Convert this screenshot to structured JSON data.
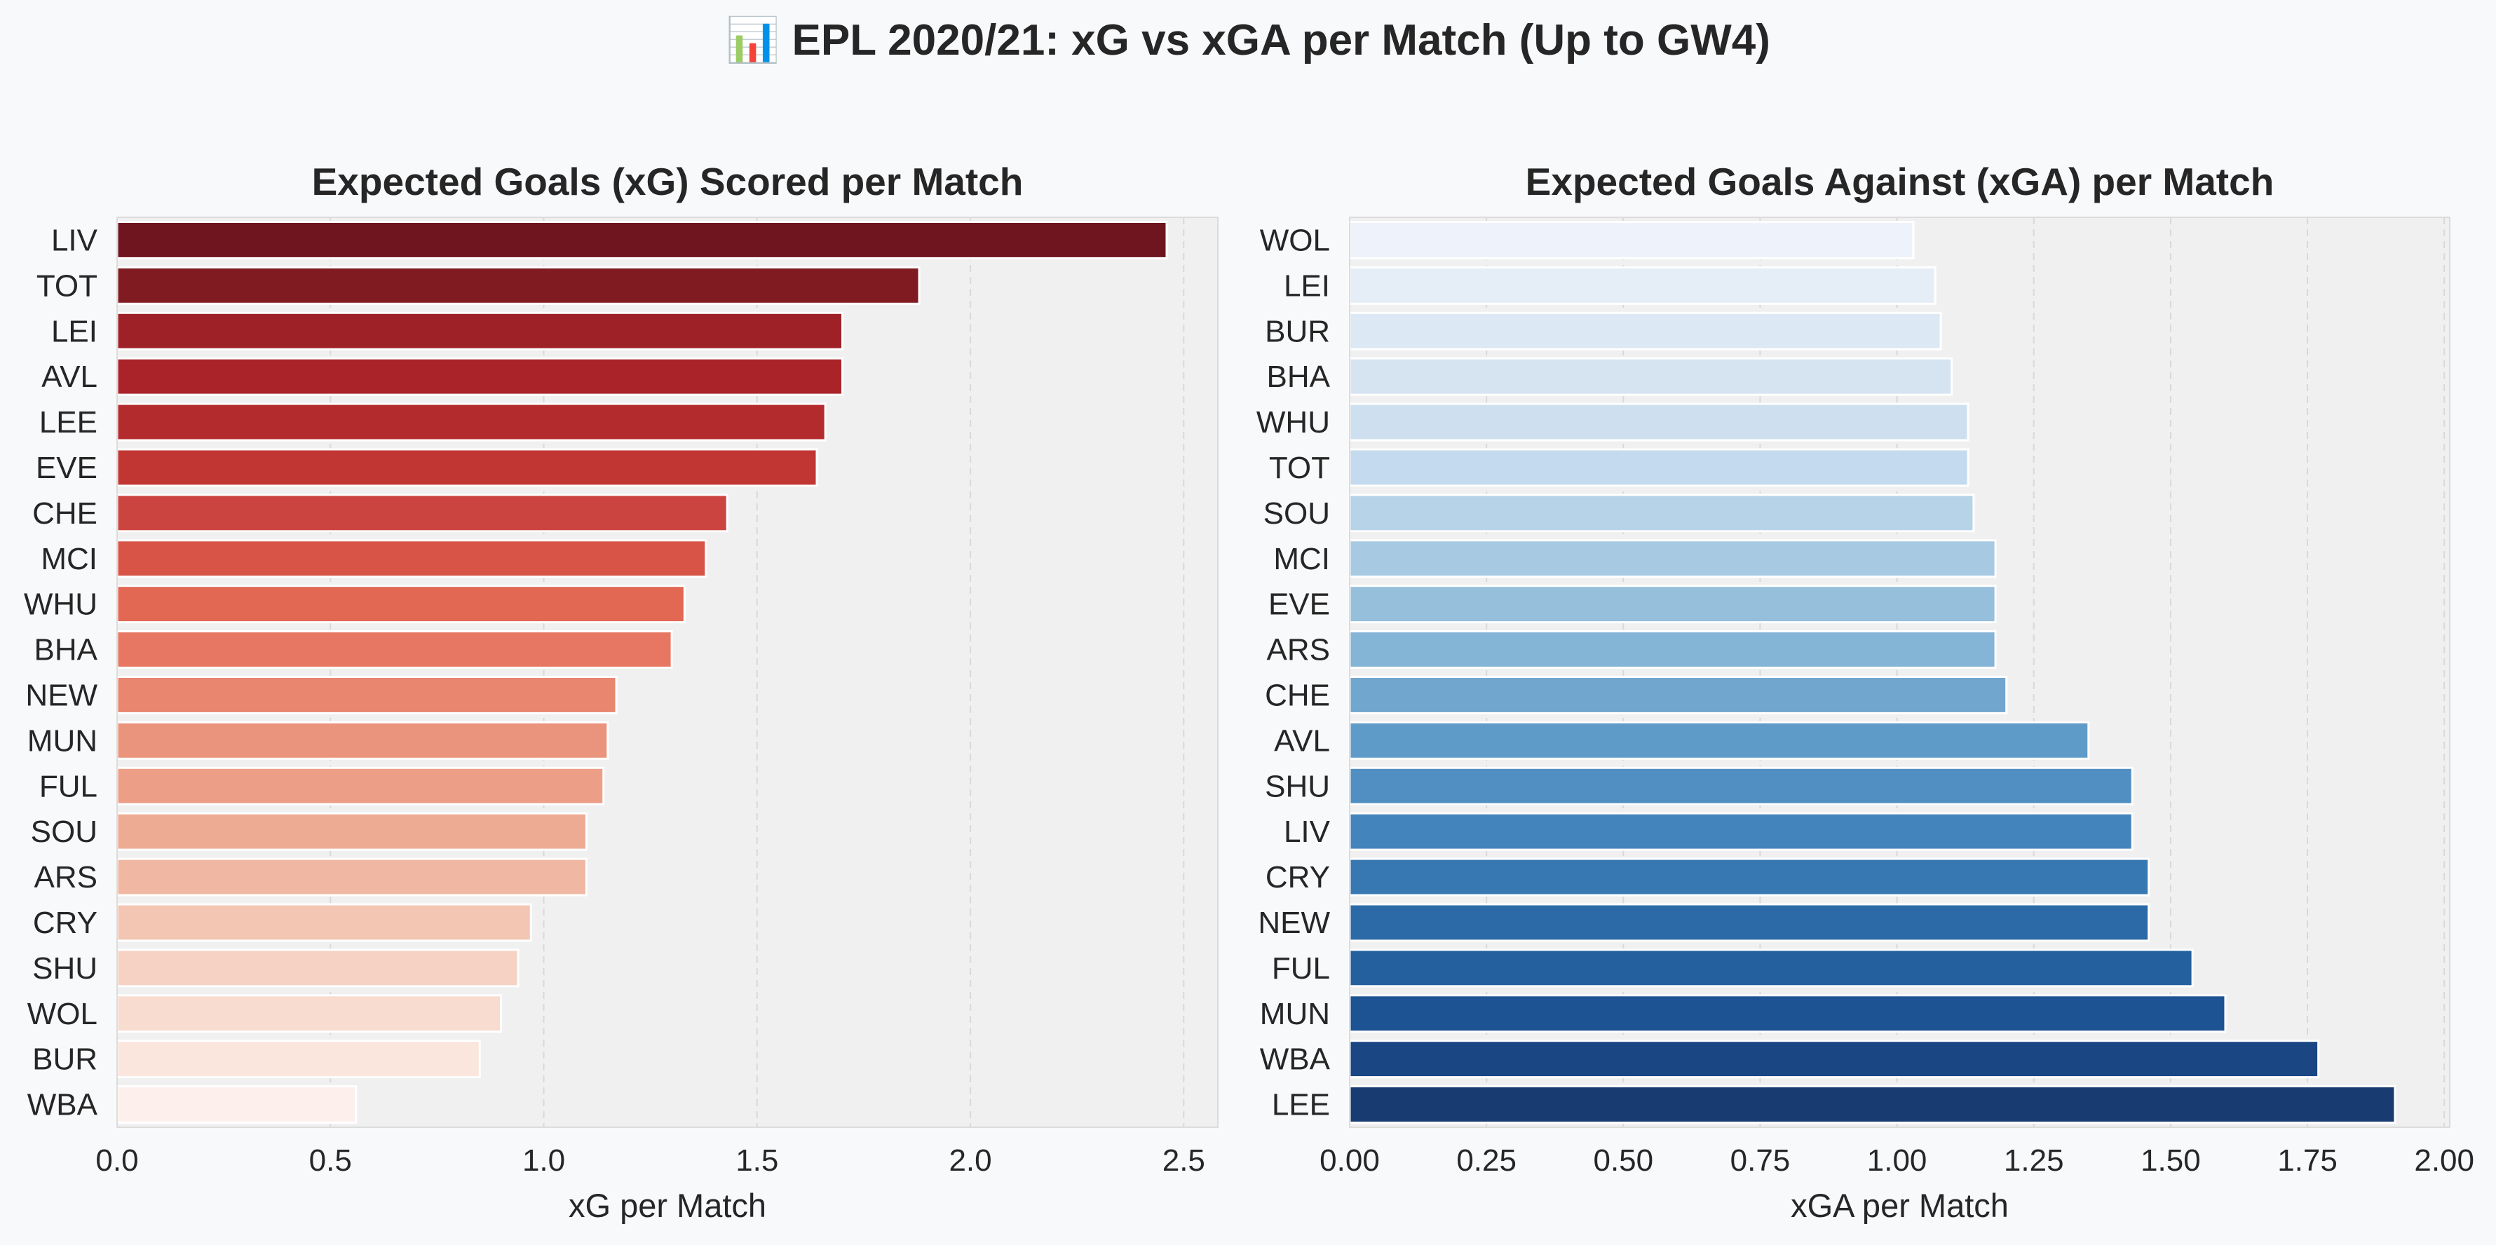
{
  "suptitle": "📊 EPL 2020/21: xG vs xGA per Match (Up to GW4)",
  "colors": {
    "page_background": "#f8f9fb",
    "axes_background": "#f0f0f0",
    "gridline": "#d9d9d9",
    "bar_edge": "#ffffff"
  },
  "chart_data": [
    {
      "type": "bar",
      "orientation": "horizontal",
      "title": "Expected Goals (xG) Scored per Match",
      "xlabel": "xG per Match",
      "ylabel": "",
      "xlim": [
        0,
        2.58
      ],
      "xticks": [
        0,
        0.5,
        1.0,
        1.5,
        2.0,
        2.5
      ],
      "xtick_labels": [
        "0.0",
        "0.5",
        "1.0",
        "1.5",
        "2.0",
        "2.5"
      ],
      "grid": "x-dashed",
      "palette": "Reds (descending)",
      "categories": [
        "LIV",
        "TOT",
        "LEI",
        "AVL",
        "LEE",
        "EVE",
        "CHE",
        "MCI",
        "WHU",
        "BHA",
        "NEW",
        "MUN",
        "FUL",
        "SOU",
        "ARS",
        "CRY",
        "SHU",
        "WOL",
        "BUR",
        "WBA"
      ],
      "values": [
        2.46,
        1.88,
        1.7,
        1.7,
        1.66,
        1.64,
        1.43,
        1.38,
        1.33,
        1.3,
        1.17,
        1.15,
        1.14,
        1.1,
        1.1,
        0.97,
        0.94,
        0.9,
        0.85,
        0.56
      ],
      "bar_colors": [
        "#6e1520",
        "#811b22",
        "#9e2127",
        "#a92329",
        "#b42b2d",
        "#c13632",
        "#cc4440",
        "#d75447",
        "#e26854",
        "#e77762",
        "#e88670",
        "#ea947d",
        "#ec9f86",
        "#eeab93",
        "#f0b8a2",
        "#f3c5b3",
        "#f6d2c4",
        "#f8dcd0",
        "#fbe6dd",
        "#fdf0ec"
      ]
    },
    {
      "type": "bar",
      "orientation": "horizontal",
      "title": "Expected Goals Against (xGA) per Match",
      "xlabel": "xGA per Match",
      "ylabel": "",
      "xlim": [
        0,
        2.01
      ],
      "xticks": [
        0,
        0.25,
        0.5,
        0.75,
        1.0,
        1.25,
        1.5,
        1.75,
        2.0
      ],
      "xtick_labels": [
        "0.00",
        "0.25",
        "0.50",
        "0.75",
        "1.00",
        "1.25",
        "1.50",
        "1.75",
        "2.00"
      ],
      "grid": "x-dashed",
      "palette": "Blues (ascending)",
      "categories": [
        "WOL",
        "LEI",
        "BUR",
        "BHA",
        "WHU",
        "TOT",
        "SOU",
        "MCI",
        "EVE",
        "ARS",
        "CHE",
        "AVL",
        "SHU",
        "LIV",
        "CRY",
        "NEW",
        "FUL",
        "MUN",
        "WBA",
        "LEE"
      ],
      "values": [
        1.03,
        1.07,
        1.08,
        1.1,
        1.13,
        1.13,
        1.14,
        1.18,
        1.18,
        1.18,
        1.2,
        1.35,
        1.43,
        1.43,
        1.46,
        1.46,
        1.54,
        1.6,
        1.77,
        1.91
      ],
      "bar_colors": [
        "#eef3fb",
        "#e5eef7",
        "#dce8f4",
        "#d6e4f2",
        "#cee0f0",
        "#c4daee",
        "#b6d3e8",
        "#a7cae2",
        "#96bfdc",
        "#84b4d6",
        "#71a6ce",
        "#5f9bc8",
        "#518fc2",
        "#4484bc",
        "#3778b2",
        "#2c6aa7",
        "#23609d",
        "#1d5293",
        "#1a4783",
        "#183c72"
      ]
    }
  ]
}
